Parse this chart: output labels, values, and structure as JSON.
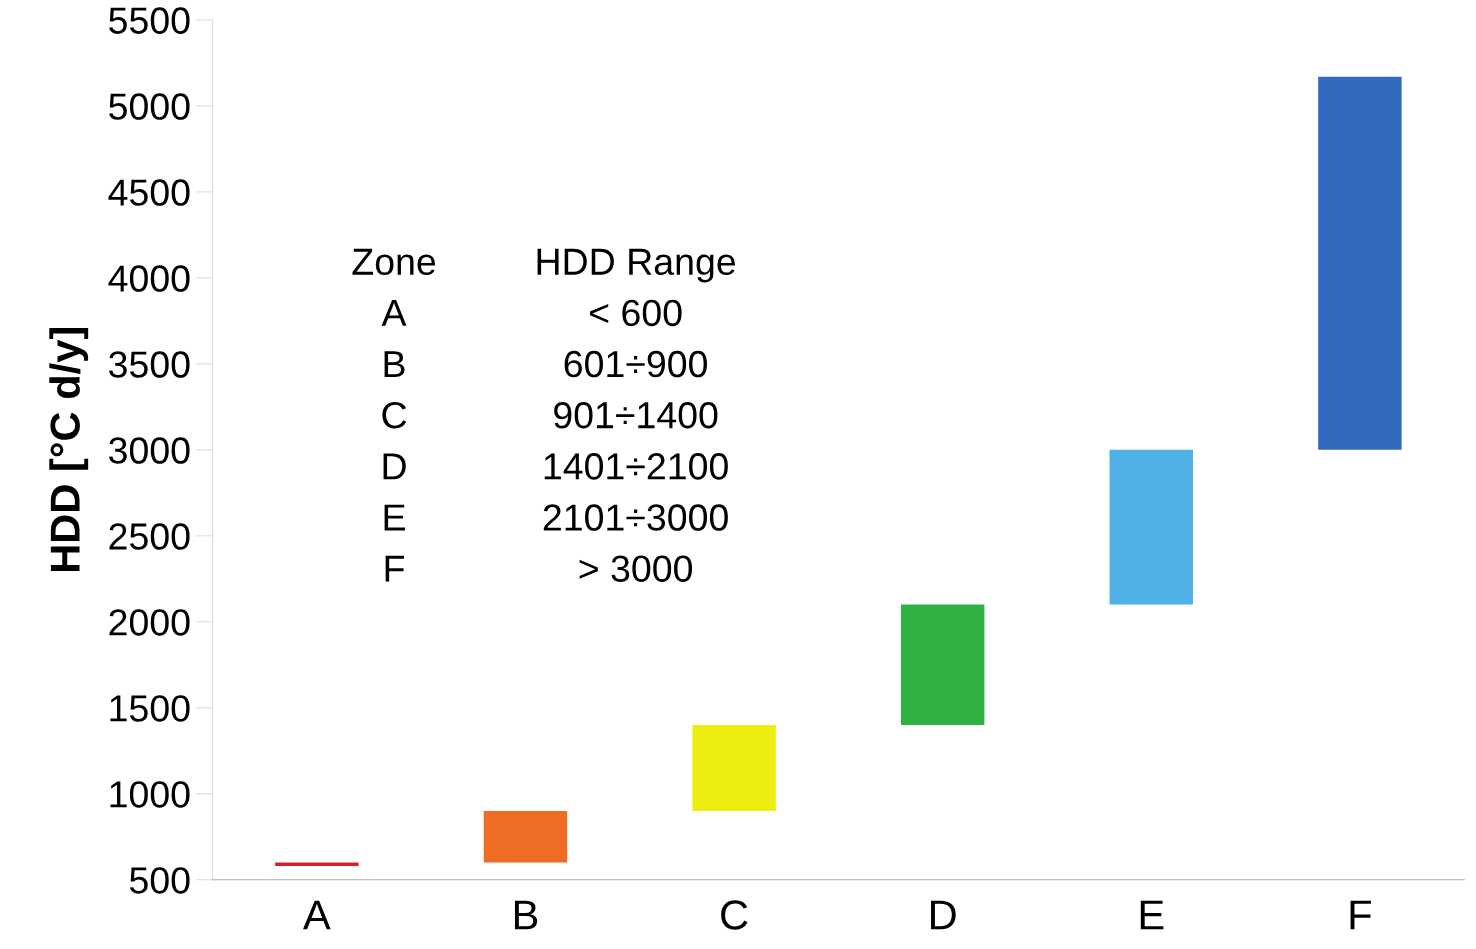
{
  "chart_data": {
    "type": "bar",
    "ylabel": "HDD [°C d/y]",
    "categories": [
      "A",
      "B",
      "C",
      "D",
      "E",
      "F"
    ],
    "values": [
      20,
      300,
      500,
      700,
      900,
      2170
    ],
    "base": [
      580,
      600,
      900,
      1400,
      2100,
      3000
    ],
    "colors": [
      "#d9202a",
      "#ee6c23",
      "#eded12",
      "#2fb144",
      "#4fb1e5",
      "#326bbd"
    ],
    "ylim": [
      500,
      5500
    ],
    "yticks": [
      500,
      1000,
      1500,
      2000,
      2500,
      3000,
      3500,
      4000,
      4500,
      5000,
      5500
    ],
    "grid": false,
    "annotations": [
      "Zone",
      "HDD Range",
      "A",
      "< 600",
      "B",
      "601÷900",
      "C",
      "901÷1400",
      "D",
      "1401÷2100",
      "E",
      "2101÷3000",
      "F",
      "> 3000"
    ]
  }
}
